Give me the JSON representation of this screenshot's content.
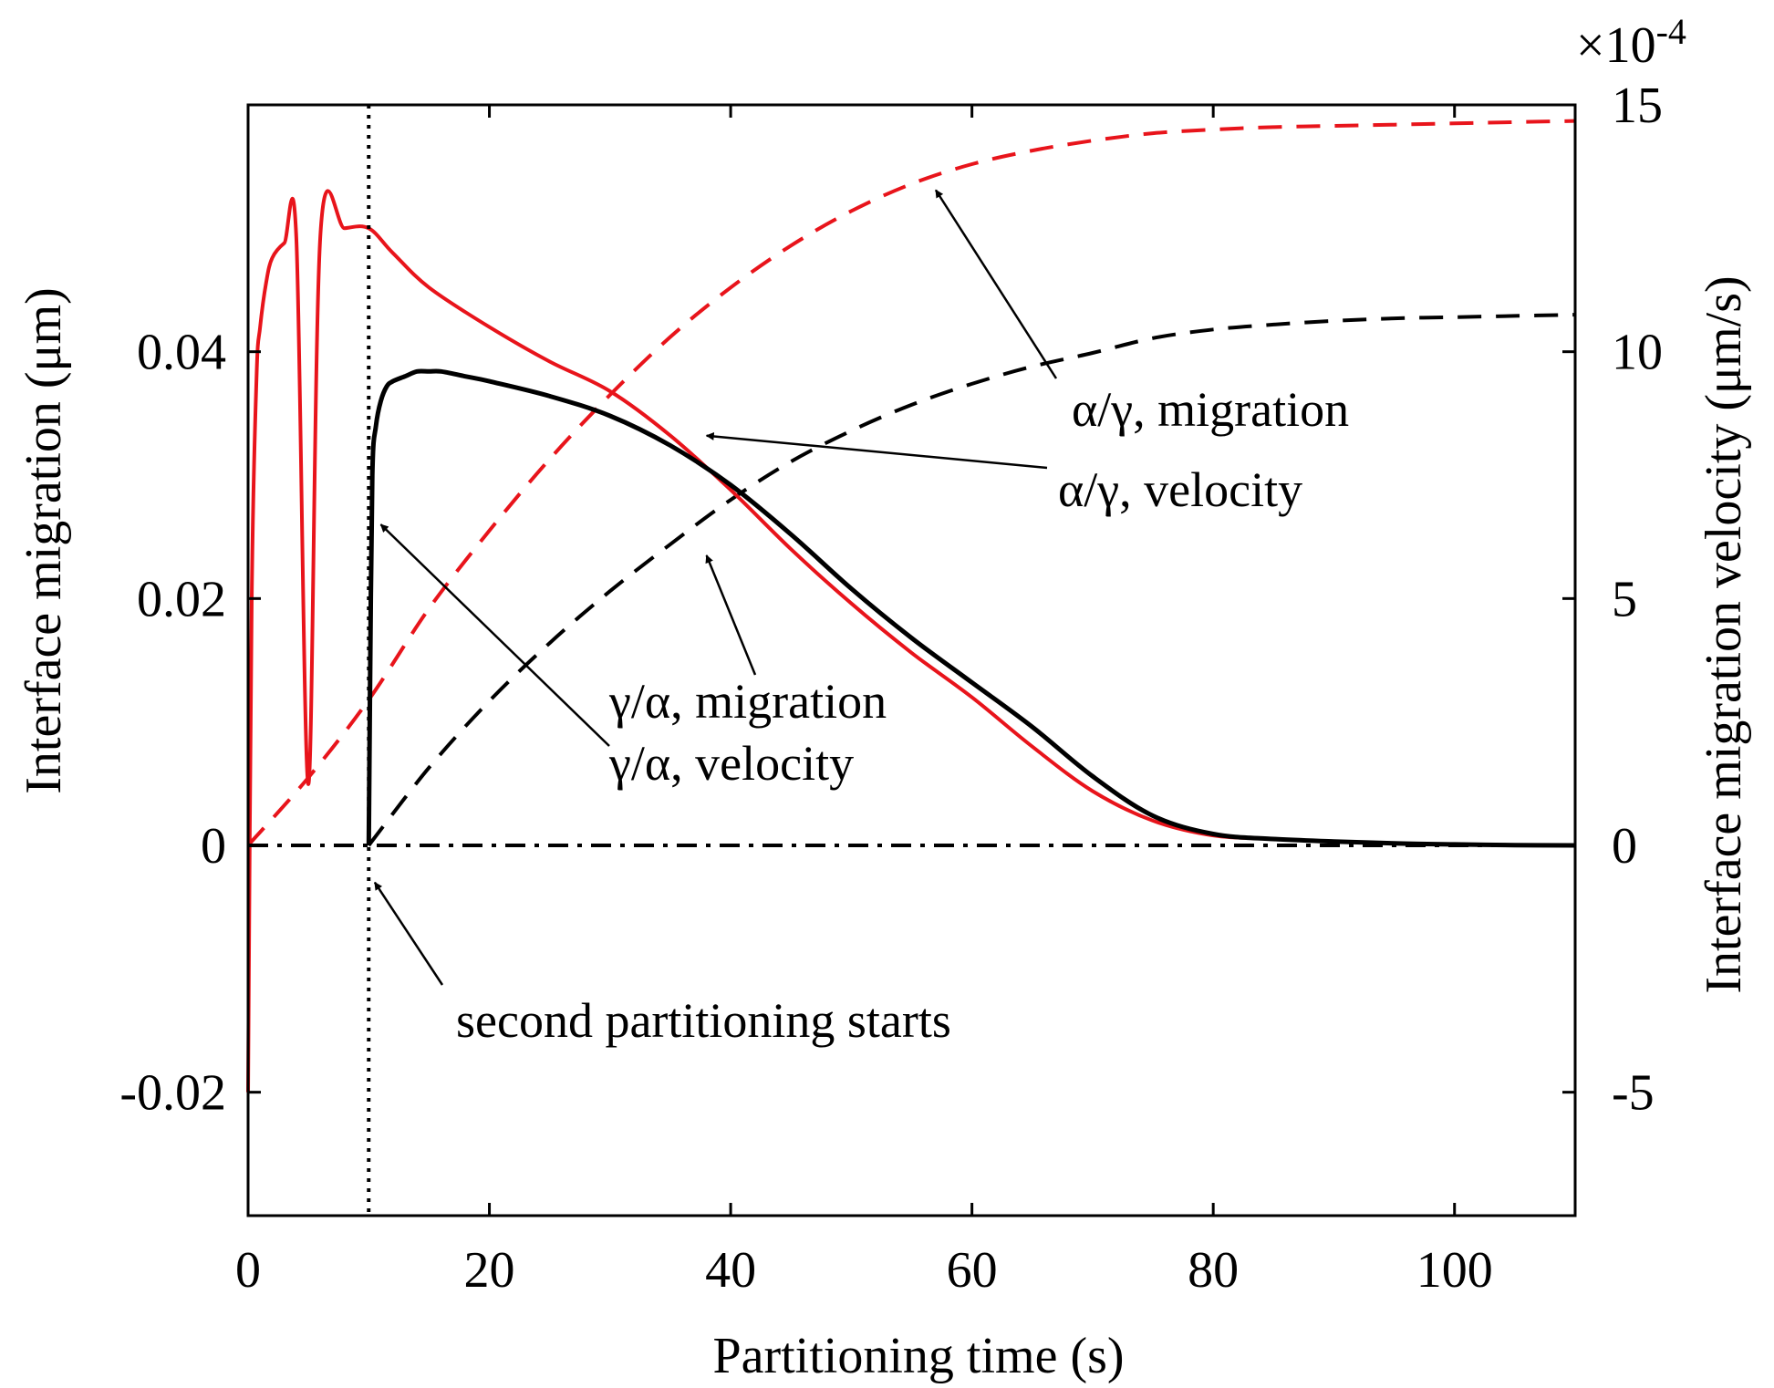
{
  "chart_data": {
    "type": "line",
    "xlabel": "Partitioning time (s)",
    "ylabel_left": "Interface migration (μm)",
    "ylabel_right": "Interface migration velocity (μm/s)",
    "xlim": [
      0,
      110
    ],
    "ylim_left": [
      -0.03,
      0.06
    ],
    "ylim_right": [
      -0.00075,
      0.0015
    ],
    "x_ticks": [
      0,
      20,
      40,
      60,
      80,
      100
    ],
    "x_tick_labels": [
      "0",
      "20",
      "40",
      "60",
      "80",
      "100"
    ],
    "y_left_ticks": [
      -0.02,
      0,
      0.02,
      0.04
    ],
    "y_left_tick_labels": [
      "-0.02",
      "0",
      "0.02",
      "0.04"
    ],
    "y_right_ticks": [
      -0.0005,
      0,
      0.0005,
      0.001,
      0.0015
    ],
    "y_right_tick_labels": [
      "-5",
      "0",
      "5",
      "10",
      "15"
    ],
    "right_axis_multiplier": {
      "base": "×10",
      "exponent": "-4"
    },
    "grid": false,
    "series": [
      {
        "name": "α/γ, migration",
        "axis": "left",
        "color": "#e8141b",
        "style": "dashed",
        "x": [
          0,
          5,
          10,
          15,
          20,
          25,
          30,
          35,
          40,
          45,
          50,
          55,
          60,
          65,
          70,
          75,
          80,
          85,
          90,
          95,
          100,
          105,
          110
        ],
        "y": [
          0,
          0.0055,
          0.0118,
          0.0192,
          0.0255,
          0.0313,
          0.0365,
          0.0412,
          0.0452,
          0.0486,
          0.0514,
          0.0536,
          0.0552,
          0.0563,
          0.0571,
          0.0577,
          0.058,
          0.0582,
          0.0583,
          0.0584,
          0.0585,
          0.0586,
          0.0587
        ]
      },
      {
        "name": "γ/α, migration",
        "axis": "left",
        "color": "#000000",
        "style": "dashed",
        "x": [
          10,
          15,
          20,
          25,
          30,
          35,
          40,
          45,
          50,
          55,
          60,
          65,
          70,
          75,
          80,
          85,
          90,
          95,
          100,
          105,
          110
        ],
        "y": [
          0,
          0.0063,
          0.0117,
          0.0164,
          0.0206,
          0.0244,
          0.028,
          0.0311,
          0.0336,
          0.0357,
          0.0374,
          0.0388,
          0.0399,
          0.0411,
          0.0418,
          0.0422,
          0.0425,
          0.0427,
          0.0428,
          0.0429,
          0.043
        ]
      },
      {
        "name": "α/γ, velocity",
        "axis": "right",
        "color": "#e8141b",
        "style": "solid",
        "x": [
          0,
          0.3,
          0.7,
          1,
          1.5,
          2,
          3,
          4,
          5,
          6,
          8,
          10,
          12,
          15,
          20,
          25,
          30,
          35,
          40,
          45,
          50,
          55,
          60,
          65,
          70,
          75,
          80,
          85,
          90,
          95,
          100,
          105,
          110
        ],
        "y": [
          -0.0005,
          0.0005,
          0.00095,
          0.00105,
          0.00114,
          0.00119,
          0.00122,
          0.00123,
          0.000124,
          0.00124,
          0.00125,
          0.00125,
          0.0012,
          0.00113,
          0.00105,
          0.00098,
          0.00092,
          0.00083,
          0.00072,
          0.0006,
          0.00049,
          0.00039,
          0.0003,
          0.0002,
          0.00011,
          5e-05,
          2e-05,
          1.3e-05,
          8e-06,
          4e-06,
          2e-06,
          5e-07,
          0
        ]
      },
      {
        "name": "γ/α, velocity",
        "axis": "right",
        "color": "#000000",
        "style": "solid",
        "x": [
          10,
          10.1,
          10.3,
          10.6,
          11,
          11.5,
          12,
          13,
          14,
          15,
          16,
          18,
          20,
          25,
          30,
          35,
          40,
          45,
          50,
          55,
          60,
          65,
          70,
          75,
          80,
          85,
          90,
          95,
          100,
          105,
          110
        ],
        "y": [
          0,
          0.0003,
          0.00075,
          0.00085,
          0.0009,
          0.00093,
          0.00094,
          0.00095,
          0.00096,
          0.00096,
          0.00096,
          0.00095,
          0.00094,
          0.00091,
          0.00087,
          0.00081,
          0.00073,
          0.00063,
          0.00052,
          0.00042,
          0.00033,
          0.00024,
          0.00014,
          6e-05,
          2.3e-05,
          1.3e-05,
          8e-06,
          4e-06,
          2e-06,
          5e-07,
          0
        ]
      }
    ],
    "reference_lines": [
      {
        "name": "zero line",
        "orientation": "horizontal",
        "y": 0,
        "style": "dashdot",
        "color": "#000000"
      },
      {
        "name": "second partitioning start",
        "orientation": "vertical",
        "x": 10,
        "style": "dotted",
        "color": "#000000"
      }
    ],
    "annotations": [
      {
        "text": "α/γ, migration",
        "arrow_to_x": 57,
        "arrow_to_axis": "left",
        "arrow_to_y": 0.0531
      },
      {
        "text": "α/γ, velocity",
        "arrow_to_x": 38,
        "arrow_to_axis": "right",
        "arrow_to_y": 0.00083
      },
      {
        "text": "γ/α, migration",
        "arrow_to_x": 38,
        "arrow_to_axis": "left",
        "arrow_to_y": 0.0235
      },
      {
        "text": "γ/α, velocity",
        "arrow_to_x": 11,
        "arrow_to_axis": "right",
        "arrow_to_y": 0.00065
      },
      {
        "text": "second partitioning starts",
        "arrow_to_x": 10.5,
        "arrow_to_axis": "left",
        "arrow_to_y": -0.003
      }
    ]
  }
}
